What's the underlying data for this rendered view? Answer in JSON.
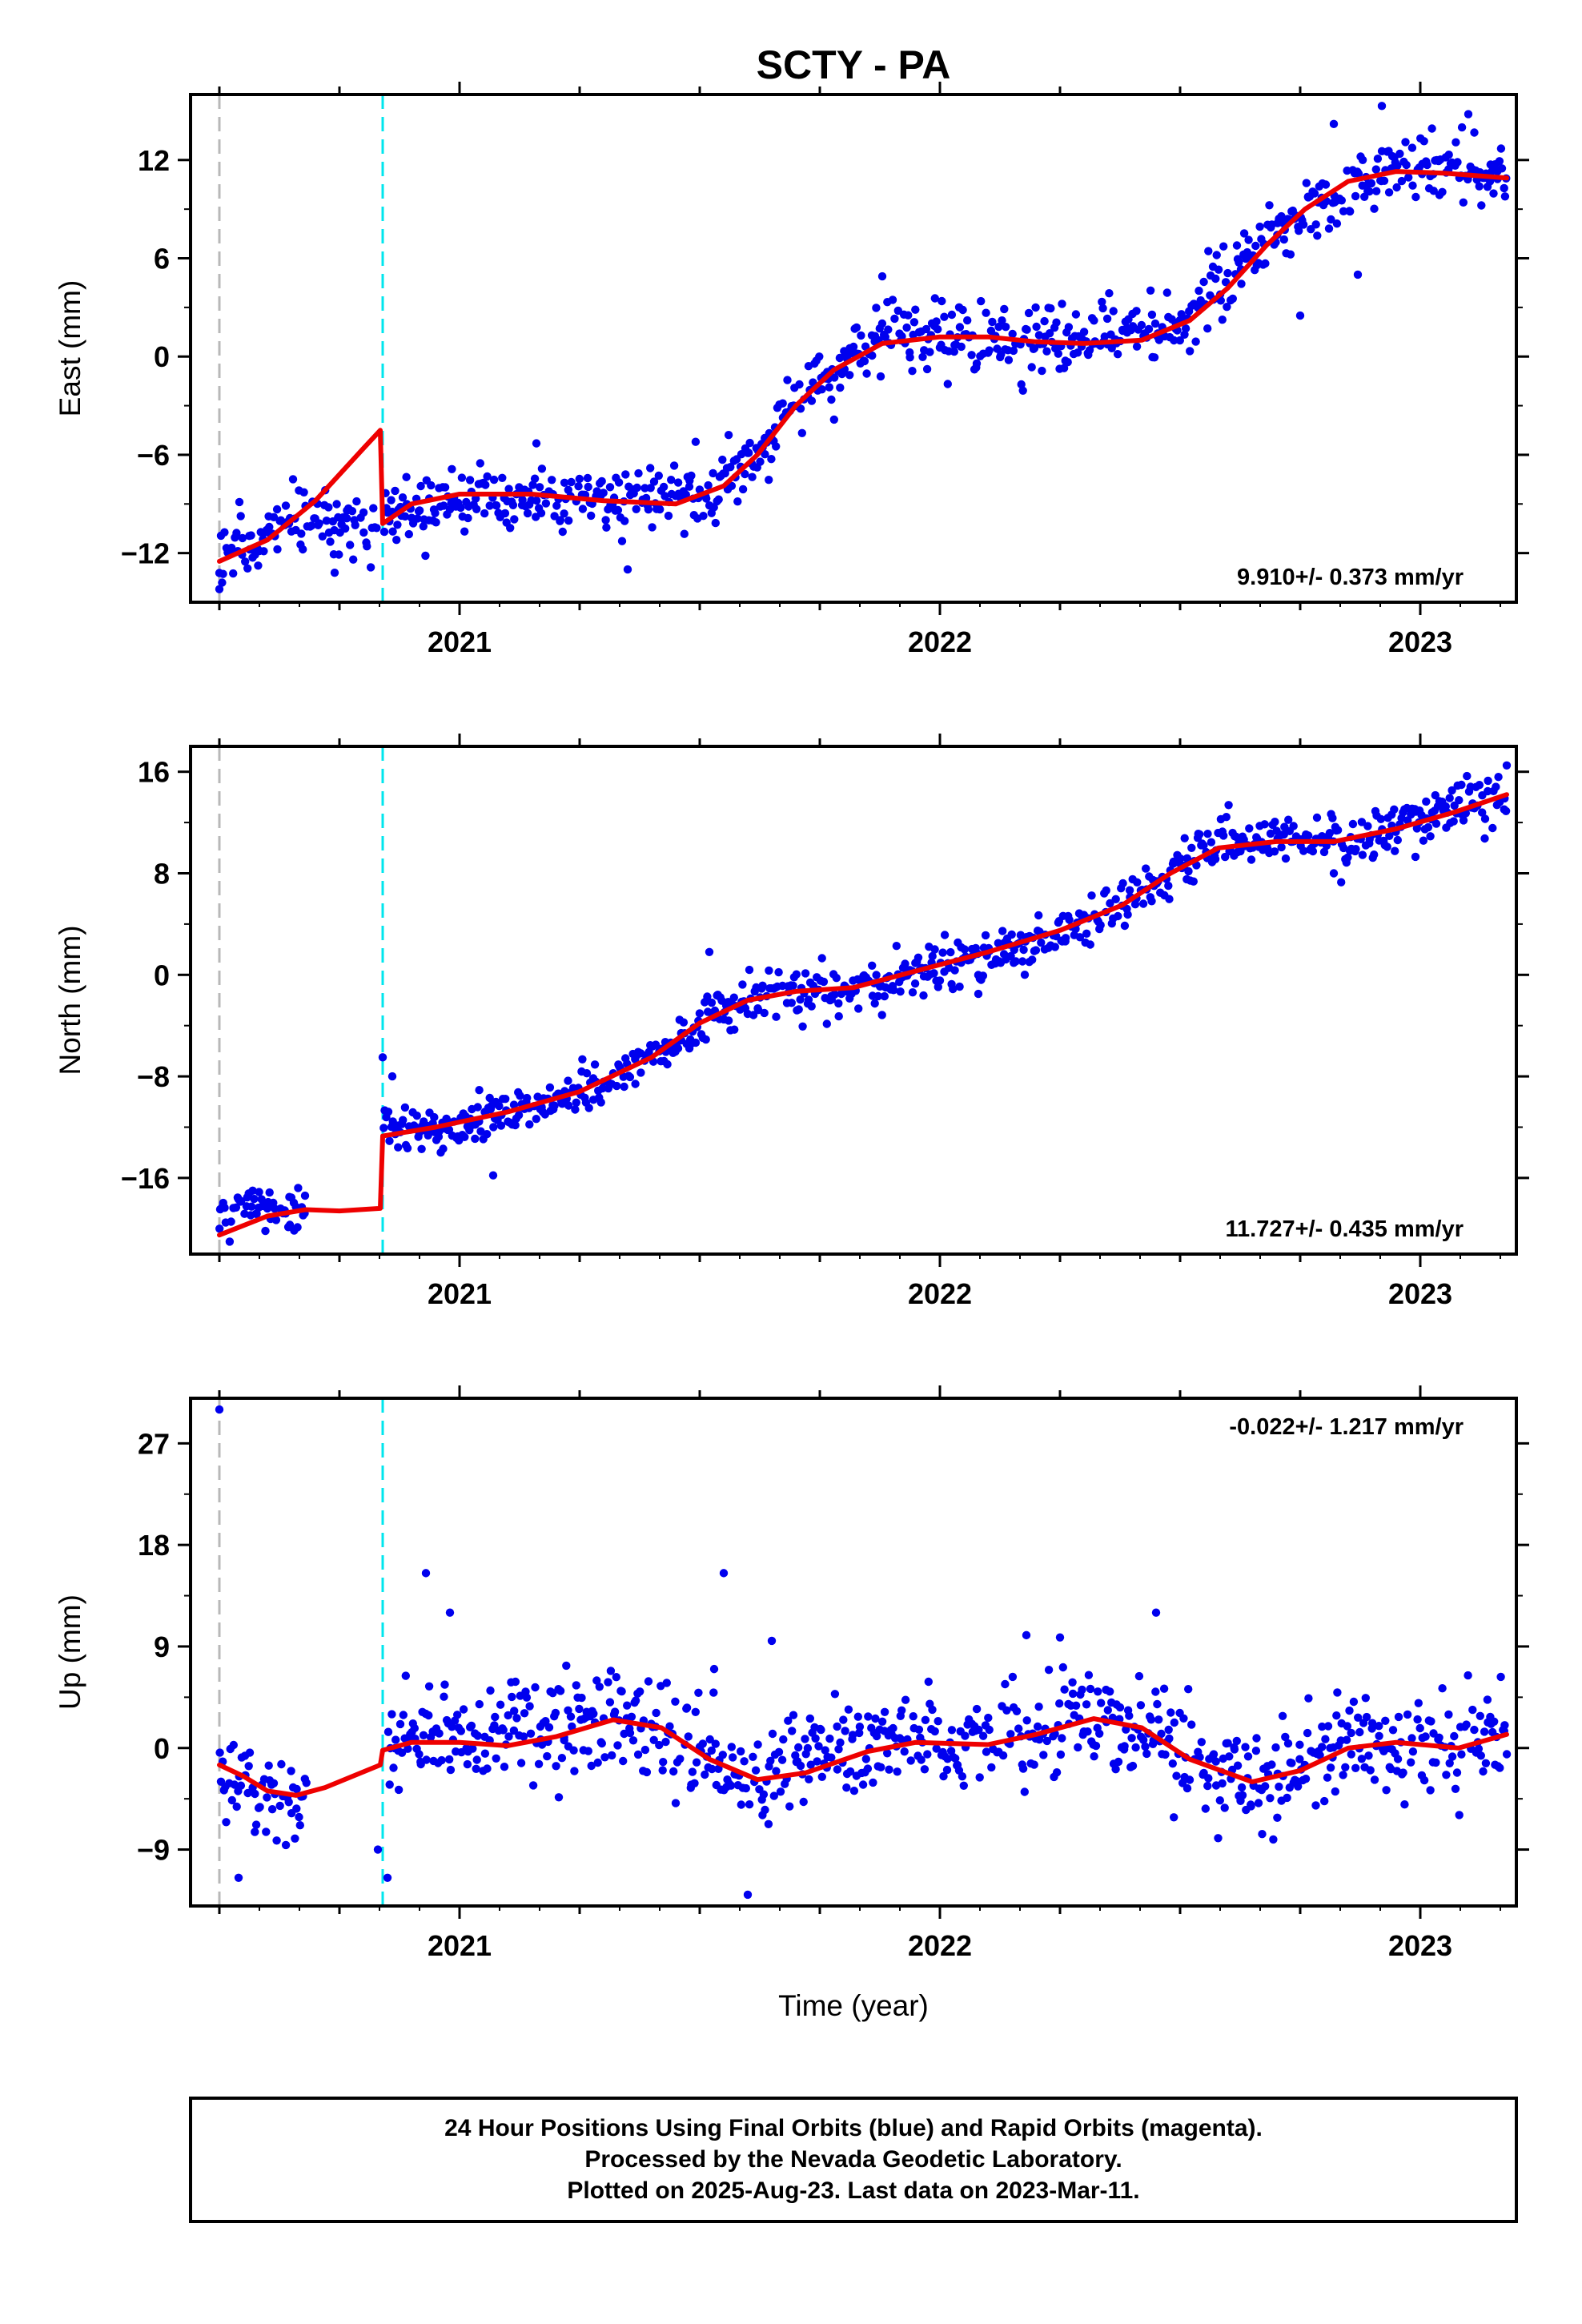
{
  "figure": {
    "title": "SCTY - PA",
    "xlabel": "Time (year)",
    "footer": [
      "24 Hour Positions Using Final Orbits (blue) and Rapid Orbits (magenta).",
      "Processed by the Nevada Geodetic Laboratory.",
      "Plotted on 2025-Aug-23. Last data on 2023-Mar-11."
    ],
    "colors": {
      "data_points": "#0000ee",
      "model_fit": "#ee0000",
      "equipment_change": "#b8b8b8",
      "offset_event": "#00e6ee"
    }
  },
  "chart_data": [
    {
      "type": "scatter",
      "ylabel": "East (mm)",
      "rate_label": "9.910+/- 0.373 mm/yr",
      "rate_position": "bottom-right",
      "xlim": [
        2020.44,
        2023.2
      ],
      "ylim": [
        -15,
        16
      ],
      "yticks": [
        -12,
        -6,
        0,
        6,
        12
      ],
      "xticks": [
        2021,
        2022,
        2023
      ],
      "grid": false,
      "vlines": [
        {
          "x": 2020.5,
          "kind": "equipment_change"
        },
        {
          "x": 2020.84,
          "kind": "offset_event"
        }
      ],
      "data_series": [
        {
          "x": 2020.5,
          "y": -12.5,
          "spread": 1.5
        },
        {
          "x": 2020.59,
          "y": -10.8,
          "spread": 1.6
        },
        {
          "x": 2020.66,
          "y": -10.0,
          "spread": 1.7
        },
        {
          "x": 2020.83,
          "y": -10.5,
          "spread": 1.5,
          "gap_after": true
        },
        {
          "x": 2020.84,
          "y": -9.5,
          "spread": 1.6
        },
        {
          "x": 2020.95,
          "y": -8.8,
          "spread": 1.6
        },
        {
          "x": 2021.1,
          "y": -8.5,
          "spread": 1.6
        },
        {
          "x": 2021.3,
          "y": -9.0,
          "spread": 1.6
        },
        {
          "x": 2021.5,
          "y": -8.5,
          "spread": 1.6
        },
        {
          "x": 2021.6,
          "y": -6.5,
          "spread": 1.6
        },
        {
          "x": 2021.7,
          "y": -3.0,
          "spread": 1.7
        },
        {
          "x": 2021.8,
          "y": -0.5,
          "spread": 1.7
        },
        {
          "x": 2021.9,
          "y": 1.5,
          "spread": 1.7
        },
        {
          "x": 2022.0,
          "y": 1.5,
          "spread": 1.6
        },
        {
          "x": 2022.2,
          "y": 1.0,
          "spread": 1.7
        },
        {
          "x": 2022.4,
          "y": 1.0,
          "spread": 1.7
        },
        {
          "x": 2022.5,
          "y": 2.0,
          "spread": 1.7
        },
        {
          "x": 2022.6,
          "y": 5.0,
          "spread": 1.6
        },
        {
          "x": 2022.7,
          "y": 7.5,
          "spread": 1.6
        },
        {
          "x": 2022.8,
          "y": 9.5,
          "spread": 1.6
        },
        {
          "x": 2022.9,
          "y": 11.0,
          "spread": 1.6
        },
        {
          "x": 2023.0,
          "y": 11.5,
          "spread": 1.6
        },
        {
          "x": 2023.18,
          "y": 11.0,
          "spread": 1.6
        }
      ],
      "outliers": [
        {
          "x": 2020.5,
          "y": -14.2
        },
        {
          "x": 2020.74,
          "y": -13.2
        },
        {
          "x": 2021.16,
          "y": -5.3
        },
        {
          "x": 2021.35,
          "y": -13.0
        },
        {
          "x": 2021.88,
          "y": 4.9
        },
        {
          "x": 2022.75,
          "y": 2.5
        },
        {
          "x": 2022.82,
          "y": 14.2
        },
        {
          "x": 2022.87,
          "y": 5.0
        },
        {
          "x": 2022.92,
          "y": 15.3
        },
        {
          "x": 2023.1,
          "y": 14.8
        }
      ],
      "model_fit": [
        {
          "x": 2020.5,
          "y": -12.5
        },
        {
          "x": 2020.6,
          "y": -11.2
        },
        {
          "x": 2020.7,
          "y": -8.8
        },
        {
          "x": 2020.8,
          "y": -5.6
        },
        {
          "x": 2020.835,
          "y": -4.5,
          "break_after": true
        },
        {
          "x": 2020.84,
          "y": -10.2
        },
        {
          "x": 2020.9,
          "y": -9.0
        },
        {
          "x": 2021.0,
          "y": -8.4
        },
        {
          "x": 2021.15,
          "y": -8.4
        },
        {
          "x": 2021.3,
          "y": -8.8
        },
        {
          "x": 2021.45,
          "y": -9.0
        },
        {
          "x": 2021.55,
          "y": -7.9
        },
        {
          "x": 2021.62,
          "y": -6.0
        },
        {
          "x": 2021.7,
          "y": -3.0
        },
        {
          "x": 2021.78,
          "y": -0.8
        },
        {
          "x": 2021.88,
          "y": 0.8
        },
        {
          "x": 2022.0,
          "y": 1.2
        },
        {
          "x": 2022.1,
          "y": 1.2
        },
        {
          "x": 2022.2,
          "y": 0.9
        },
        {
          "x": 2022.3,
          "y": 0.8
        },
        {
          "x": 2022.42,
          "y": 1.0
        },
        {
          "x": 2022.52,
          "y": 2.2
        },
        {
          "x": 2022.6,
          "y": 4.2
        },
        {
          "x": 2022.68,
          "y": 6.8
        },
        {
          "x": 2022.76,
          "y": 9.0
        },
        {
          "x": 2022.85,
          "y": 10.7
        },
        {
          "x": 2022.95,
          "y": 11.3
        },
        {
          "x": 2023.05,
          "y": 11.2
        },
        {
          "x": 2023.18,
          "y": 10.9
        }
      ]
    },
    {
      "type": "scatter",
      "ylabel": "North (mm)",
      "rate_label": "11.727+/- 0.435 mm/yr",
      "rate_position": "bottom-right",
      "xlim": [
        2020.44,
        2023.2
      ],
      "ylim": [
        -22,
        18
      ],
      "yticks": [
        -16,
        -8,
        0,
        8,
        16
      ],
      "xticks": [
        2021,
        2022,
        2023
      ],
      "grid": false,
      "vlines": [
        {
          "x": 2020.5,
          "kind": "equipment_change"
        },
        {
          "x": 2020.84,
          "kind": "offset_event"
        }
      ],
      "data_series": [
        {
          "x": 2020.5,
          "y": -18.8,
          "spread": 1.4
        },
        {
          "x": 2020.6,
          "y": -18.2,
          "spread": 1.5
        },
        {
          "x": 2020.68,
          "y": -18.5,
          "spread": 1.5,
          "gap_after": true
        },
        {
          "x": 2020.84,
          "y": -11.5,
          "spread": 1.8
        },
        {
          "x": 2020.9,
          "y": -12.3,
          "spread": 1.5
        },
        {
          "x": 2021.0,
          "y": -11.8,
          "spread": 1.5
        },
        {
          "x": 2021.2,
          "y": -10.0,
          "spread": 1.5
        },
        {
          "x": 2021.4,
          "y": -6.5,
          "spread": 1.6
        },
        {
          "x": 2021.55,
          "y": -2.5,
          "spread": 1.6
        },
        {
          "x": 2021.7,
          "y": -1.5,
          "spread": 1.5
        },
        {
          "x": 2021.85,
          "y": -1.2,
          "spread": 1.5
        },
        {
          "x": 2022.0,
          "y": 0.8,
          "spread": 1.6
        },
        {
          "x": 2022.2,
          "y": 2.5,
          "spread": 1.6
        },
        {
          "x": 2022.35,
          "y": 5.0,
          "spread": 1.6
        },
        {
          "x": 2022.45,
          "y": 7.0,
          "spread": 1.6
        },
        {
          "x": 2022.55,
          "y": 10.0,
          "spread": 1.6
        },
        {
          "x": 2022.7,
          "y": 10.5,
          "spread": 1.5
        },
        {
          "x": 2022.85,
          "y": 10.3,
          "spread": 1.6
        },
        {
          "x": 2023.0,
          "y": 12.5,
          "spread": 1.6
        },
        {
          "x": 2023.18,
          "y": 14.2,
          "spread": 1.6
        }
      ],
      "outliers": [
        {
          "x": 2020.84,
          "y": -6.5
        },
        {
          "x": 2020.86,
          "y": -8.0
        },
        {
          "x": 2021.07,
          "y": -15.8
        },
        {
          "x": 2021.52,
          "y": 1.8
        },
        {
          "x": 2022.08,
          "y": -1.5
        },
        {
          "x": 2022.82,
          "y": 8.0
        },
        {
          "x": 2022.99,
          "y": 9.3
        },
        {
          "x": 2023.18,
          "y": 16.5
        }
      ],
      "model_fit": [
        {
          "x": 2020.5,
          "y": -20.5
        },
        {
          "x": 2020.6,
          "y": -19.0
        },
        {
          "x": 2020.68,
          "y": -18.5
        },
        {
          "x": 2020.75,
          "y": -18.6
        },
        {
          "x": 2020.835,
          "y": -18.4,
          "break_after": true
        },
        {
          "x": 2020.84,
          "y": -12.7
        },
        {
          "x": 2020.95,
          "y": -12.0
        },
        {
          "x": 2021.1,
          "y": -10.8
        },
        {
          "x": 2021.25,
          "y": -9.2
        },
        {
          "x": 2021.4,
          "y": -6.5
        },
        {
          "x": 2021.5,
          "y": -3.8
        },
        {
          "x": 2021.6,
          "y": -2.0
        },
        {
          "x": 2021.7,
          "y": -1.3
        },
        {
          "x": 2021.82,
          "y": -1.0
        },
        {
          "x": 2021.95,
          "y": 0.3
        },
        {
          "x": 2022.1,
          "y": 1.8
        },
        {
          "x": 2022.25,
          "y": 3.5
        },
        {
          "x": 2022.38,
          "y": 5.5
        },
        {
          "x": 2022.48,
          "y": 8.0
        },
        {
          "x": 2022.58,
          "y": 10.0
        },
        {
          "x": 2022.7,
          "y": 10.5
        },
        {
          "x": 2022.82,
          "y": 10.5
        },
        {
          "x": 2022.95,
          "y": 11.5
        },
        {
          "x": 2023.07,
          "y": 12.8
        },
        {
          "x": 2023.18,
          "y": 14.2
        }
      ]
    },
    {
      "type": "scatter",
      "ylabel": "Up (mm)",
      "rate_label": "-0.022+/- 1.217 mm/yr",
      "rate_position": "top-right",
      "xlim": [
        2020.44,
        2023.2
      ],
      "ylim": [
        -14,
        31
      ],
      "yticks": [
        -9,
        0,
        9,
        18,
        27
      ],
      "xticks": [
        2021,
        2022,
        2023
      ],
      "grid": false,
      "vlines": [
        {
          "x": 2020.5,
          "kind": "equipment_change"
        },
        {
          "x": 2020.84,
          "kind": "offset_event"
        }
      ],
      "data_series": [
        {
          "x": 2020.5,
          "y": -2.0,
          "spread": 3.2
        },
        {
          "x": 2020.6,
          "y": -4.5,
          "spread": 3.2
        },
        {
          "x": 2020.68,
          "y": -4.0,
          "spread": 3.0,
          "gap_after": true
        },
        {
          "x": 2020.85,
          "y": 0.5,
          "spread": 4.0
        },
        {
          "x": 2021.0,
          "y": 1.0,
          "spread": 3.6
        },
        {
          "x": 2021.2,
          "y": 2.0,
          "spread": 3.6
        },
        {
          "x": 2021.35,
          "y": 2.2,
          "spread": 3.6
        },
        {
          "x": 2021.5,
          "y": -1.0,
          "spread": 3.8
        },
        {
          "x": 2021.62,
          "y": -3.0,
          "spread": 3.8
        },
        {
          "x": 2021.8,
          "y": 0.0,
          "spread": 3.6
        },
        {
          "x": 2022.0,
          "y": 0.5,
          "spread": 3.6
        },
        {
          "x": 2022.2,
          "y": 1.5,
          "spread": 3.6
        },
        {
          "x": 2022.35,
          "y": 2.5,
          "spread": 3.6
        },
        {
          "x": 2022.5,
          "y": -1.0,
          "spread": 3.8
        },
        {
          "x": 2022.65,
          "y": -3.5,
          "spread": 3.8
        },
        {
          "x": 2022.85,
          "y": 0.0,
          "spread": 3.6
        },
        {
          "x": 2023.0,
          "y": 0.0,
          "spread": 3.6
        },
        {
          "x": 2023.18,
          "y": 0.5,
          "spread": 3.6
        }
      ],
      "outliers": [
        {
          "x": 2020.5,
          "y": 30.0
        },
        {
          "x": 2020.54,
          "y": -11.5
        },
        {
          "x": 2020.85,
          "y": -11.5
        },
        {
          "x": 2020.83,
          "y": -9.0
        },
        {
          "x": 2020.93,
          "y": 15.5
        },
        {
          "x": 2020.98,
          "y": 12.0
        },
        {
          "x": 2021.55,
          "y": 15.5
        },
        {
          "x": 2021.53,
          "y": 7.0
        },
        {
          "x": 2021.6,
          "y": -13.0
        },
        {
          "x": 2021.65,
          "y": 9.5
        },
        {
          "x": 2022.45,
          "y": 12.0
        },
        {
          "x": 2022.18,
          "y": 10.0
        },
        {
          "x": 2022.25,
          "y": 9.8
        }
      ],
      "model_fit": [
        {
          "x": 2020.5,
          "y": -1.5
        },
        {
          "x": 2020.55,
          "y": -2.5
        },
        {
          "x": 2020.6,
          "y": -3.8
        },
        {
          "x": 2020.66,
          "y": -4.2
        },
        {
          "x": 2020.72,
          "y": -3.5
        },
        {
          "x": 2020.835,
          "y": -1.5,
          "break_after": true
        },
        {
          "x": 2020.84,
          "y": -0.2
        },
        {
          "x": 2020.9,
          "y": 0.5
        },
        {
          "x": 2021.0,
          "y": 0.5
        },
        {
          "x": 2021.1,
          "y": 0.2
        },
        {
          "x": 2021.2,
          "y": 1.0
        },
        {
          "x": 2021.32,
          "y": 2.5
        },
        {
          "x": 2021.42,
          "y": 1.8
        },
        {
          "x": 2021.52,
          "y": -1.0
        },
        {
          "x": 2021.62,
          "y": -2.8
        },
        {
          "x": 2021.72,
          "y": -2.2
        },
        {
          "x": 2021.85,
          "y": -0.3
        },
        {
          "x": 2021.95,
          "y": 0.5
        },
        {
          "x": 2022.1,
          "y": 0.3
        },
        {
          "x": 2022.2,
          "y": 1.2
        },
        {
          "x": 2022.32,
          "y": 2.6
        },
        {
          "x": 2022.42,
          "y": 1.8
        },
        {
          "x": 2022.52,
          "y": -1.0
        },
        {
          "x": 2022.65,
          "y": -3.0
        },
        {
          "x": 2022.75,
          "y": -2.0
        },
        {
          "x": 2022.85,
          "y": 0.0
        },
        {
          "x": 2022.95,
          "y": 0.5
        },
        {
          "x": 2023.08,
          "y": 0.0
        },
        {
          "x": 2023.18,
          "y": 1.2
        }
      ]
    }
  ]
}
